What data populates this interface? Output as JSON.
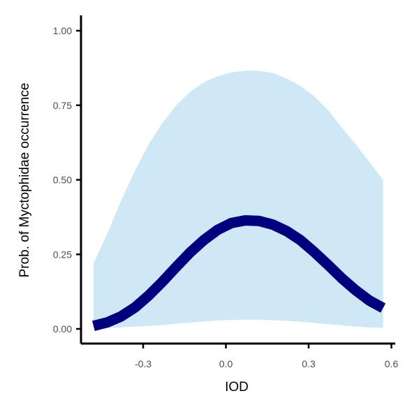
{
  "chart_data": {
    "type": "line",
    "xlabel": "IOD",
    "ylabel": "Prob. of  Myctophidae  occurrence",
    "xlim": [
      -0.6,
      0.6
    ],
    "ylim": [
      0.0,
      1.0
    ],
    "x_ticks": [
      {
        "value": -0.3,
        "label": "-0.3"
      },
      {
        "value": 0.0,
        "label": "0.0"
      },
      {
        "value": 0.3,
        "label": "0.3"
      },
      {
        "value": 0.6,
        "label": "0.6"
      }
    ],
    "y_ticks": [
      {
        "value": 0.0,
        "label": "0.00"
      },
      {
        "value": 0.25,
        "label": "0.25"
      },
      {
        "value": 0.5,
        "label": "0.50"
      },
      {
        "value": 0.75,
        "label": "0.75"
      },
      {
        "value": 1.0,
        "label": "1.00"
      }
    ],
    "grid": false,
    "legend": "none",
    "series": [
      {
        "x": [
          -0.48,
          -0.43,
          -0.38,
          -0.33,
          -0.28,
          -0.23,
          -0.18,
          -0.13,
          -0.08,
          -0.03,
          0.02,
          0.07,
          0.12,
          0.17,
          0.22,
          0.27,
          0.32,
          0.37,
          0.42,
          0.47,
          0.52,
          0.57
        ],
        "fit": [
          0.01,
          0.022,
          0.042,
          0.072,
          0.112,
          0.158,
          0.208,
          0.256,
          0.298,
          0.332,
          0.355,
          0.364,
          0.362,
          0.35,
          0.328,
          0.298,
          0.258,
          0.215,
          0.17,
          0.13,
          0.095,
          0.07
        ],
        "lower": [
          0.002,
          0.003,
          0.005,
          0.008,
          0.01,
          0.013,
          0.017,
          0.021,
          0.025,
          0.028,
          0.03,
          0.031,
          0.031,
          0.029,
          0.027,
          0.024,
          0.02,
          0.016,
          0.012,
          0.008,
          0.005,
          0.003
        ],
        "upper": [
          0.22,
          0.32,
          0.43,
          0.53,
          0.62,
          0.69,
          0.75,
          0.795,
          0.827,
          0.847,
          0.86,
          0.866,
          0.866,
          0.858,
          0.84,
          0.815,
          0.78,
          0.735,
          0.675,
          0.62,
          0.56,
          0.5
        ]
      }
    ],
    "colors": {
      "line": "#00007f",
      "ribbon": "#cfe8f5",
      "axis": "#000000",
      "tick_label": "#4d4d4d"
    }
  }
}
